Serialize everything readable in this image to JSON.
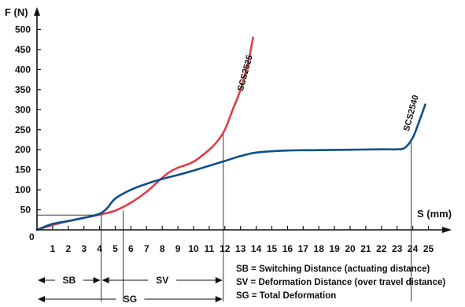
{
  "chart_data": {
    "type": "line",
    "ylabel": "F (N)",
    "xlabel": "S (mm)",
    "xlim": [
      0,
      25
    ],
    "ylim": [
      0,
      500
    ],
    "x_ticks": [
      1,
      2,
      3,
      4,
      5,
      6,
      7,
      8,
      9,
      10,
      11,
      12,
      13,
      14,
      15,
      16,
      17,
      18,
      19,
      20,
      21,
      22,
      23,
      24,
      25
    ],
    "x_tick_labels": [
      "1",
      "2",
      "3",
      "4",
      "5",
      "6",
      "7",
      "8",
      "9",
      "10",
      "11",
      "12",
      "13",
      "14",
      "15",
      "16",
      "17",
      "18",
      "19",
      "20",
      "21",
      "22",
      "23",
      "24",
      "25"
    ],
    "y_ticks": [
      50,
      100,
      150,
      200,
      250,
      300,
      350,
      400,
      450,
      500
    ],
    "y_tick_labels": [
      "50",
      "100",
      "150",
      "200",
      "250",
      "300",
      "350",
      "400",
      "450",
      "500"
    ],
    "origin_label": "0",
    "grid": false,
    "series": [
      {
        "name": "SCS2525",
        "color": "#e03c46",
        "x": [
          0,
          1,
          2,
          3,
          4,
          5,
          6,
          7,
          8,
          8.5,
          9,
          10,
          11,
          11.5,
          12,
          12.5,
          13,
          13.5,
          13.8
        ],
        "y": [
          0,
          12,
          22,
          30,
          38,
          48,
          68,
          95,
          130,
          145,
          155,
          170,
          200,
          220,
          250,
          300,
          350,
          420,
          480
        ]
      },
      {
        "name": "SCS2540",
        "color": "#0c4f8a",
        "x": [
          0,
          1,
          2,
          3,
          4,
          4.5,
          5,
          6,
          7,
          8,
          9,
          10,
          11,
          12,
          13,
          14,
          16,
          18,
          20,
          22,
          23,
          23.5,
          24,
          24.5,
          24.8
        ],
        "y": [
          0,
          15,
          22,
          30,
          40,
          55,
          78,
          100,
          115,
          127,
          137,
          148,
          160,
          172,
          184,
          193,
          198,
          199,
          200,
          201,
          201,
          205,
          230,
          280,
          313
        ]
      }
    ],
    "reference_lines": [
      {
        "x": 4.1,
        "y": 37
      },
      {
        "x": 5.5,
        "y": 48
      },
      {
        "x": 11.9,
        "y": 243
      },
      {
        "x": 23.9,
        "y": 220
      }
    ],
    "spans": [
      {
        "label": "SB",
        "from": 0,
        "to": 4.1
      },
      {
        "label": "SV",
        "from": 4.1,
        "to": 11.9
      },
      {
        "label": "SG",
        "from": 0,
        "to": 11.9
      }
    ],
    "legend_entries": [
      "SB = Switching Distance (actuating distance)",
      "SV = Deformation Distance (over travel distance)",
      "SG = Total Deformation"
    ]
  }
}
